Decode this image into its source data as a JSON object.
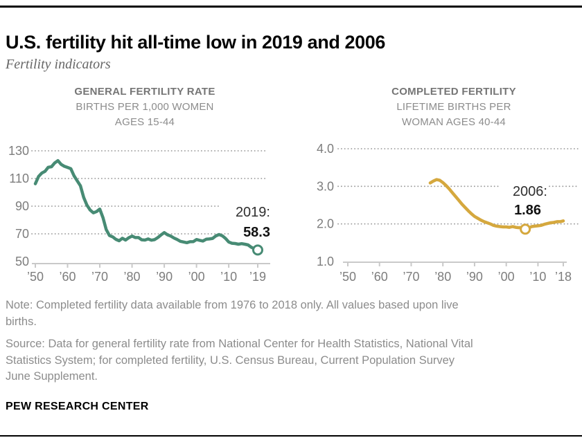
{
  "header": {
    "title": "U.S. fertility hit all-time low in 2019 and 2006",
    "subtitle": "Fertility indicators"
  },
  "chart_data": [
    {
      "type": "line",
      "title": "GENERAL FERTILITY RATE",
      "subtitle_lines": [
        "BIRTHS PER 1,000 WOMEN",
        "AGES 15-44"
      ],
      "xlabel": "",
      "ylabel": "",
      "xlim": [
        1950,
        2019
      ],
      "ylim": [
        50,
        130
      ],
      "yticks": [
        50,
        70,
        90,
        110,
        130
      ],
      "ytick_labels": [
        "50",
        "70",
        "90",
        "110",
        "130"
      ],
      "xticks": [
        1950,
        1960,
        1970,
        1980,
        1990,
        2000,
        2010,
        2019
      ],
      "xtick_labels": [
        "’50",
        "’60",
        "’70",
        "’80",
        "’90",
        "’00",
        "’10",
        "’19"
      ],
      "grid": "horizontal-dotted",
      "legend": "none",
      "line_color": "#478b74",
      "annotation": {
        "label": "2019:",
        "value": "58.3",
        "marker_year": 2019,
        "marker_value": 58.3
      },
      "series": [
        {
          "name": "General fertility rate",
          "x_start": 1950,
          "x_step": 1,
          "values": [
            106.2,
            111.5,
            113.9,
            115.2,
            118.1,
            118.5,
            121.2,
            122.9,
            120.2,
            118.8,
            118.0,
            117.1,
            112.0,
            108.3,
            104.7,
            96.3,
            90.8,
            87.2,
            85.2,
            86.1,
            87.9,
            81.6,
            73.1,
            68.8,
            67.8,
            66.0,
            65.0,
            66.8,
            65.5,
            67.2,
            68.4,
            67.3,
            67.3,
            65.7,
            65.5,
            66.3,
            65.4,
            65.8,
            67.3,
            69.2,
            70.9,
            69.3,
            68.4,
            67.0,
            65.9,
            64.6,
            64.1,
            63.6,
            64.3,
            64.4,
            65.9,
            65.3,
            64.8,
            66.1,
            66.3,
            66.7,
            68.5,
            69.5,
            68.6,
            66.7,
            64.1,
            63.2,
            63.0,
            62.5,
            62.9,
            62.5,
            62.0,
            60.3,
            59.1,
            58.3
          ]
        }
      ]
    },
    {
      "type": "line",
      "title": "COMPLETED FERTILITY",
      "subtitle_lines": [
        "LIFETIME BIRTHS PER",
        "WOMAN AGES 40-44"
      ],
      "xlabel": "",
      "ylabel": "",
      "xlim": [
        1950,
        2018
      ],
      "ylim": [
        1.0,
        4.0
      ],
      "yticks": [
        1.0,
        2.0,
        3.0,
        4.0
      ],
      "ytick_labels": [
        "1.0",
        "2.0",
        "3.0",
        "4.0"
      ],
      "xticks": [
        1950,
        1960,
        1970,
        1980,
        1990,
        2000,
        2010,
        2018
      ],
      "xtick_labels": [
        "’50",
        "’60",
        "’70",
        "’80",
        "’90",
        "’00",
        "’10",
        "’18"
      ],
      "grid": "horizontal-dotted",
      "legend": "none",
      "line_color": "#d5a83e",
      "annotation": {
        "label": "2006:",
        "value": "1.86",
        "marker_year": 2006,
        "marker_value": 1.86
      },
      "series": [
        {
          "name": "Completed fertility",
          "x_start": 1976,
          "x_step": 1,
          "values": [
            3.09,
            3.14,
            3.18,
            3.16,
            3.1,
            3.02,
            2.93,
            2.83,
            2.73,
            2.63,
            2.53,
            2.44,
            2.35,
            2.27,
            2.2,
            2.15,
            2.1,
            2.06,
            2.03,
            2.0,
            1.96,
            1.94,
            1.93,
            1.92,
            1.92,
            1.91,
            1.93,
            1.91,
            1.9,
            1.91,
            1.86,
            1.89,
            1.93,
            1.94,
            1.95,
            1.96,
            1.99,
            2.01,
            2.03,
            2.04,
            2.06,
            2.06,
            2.08
          ]
        }
      ]
    }
  ],
  "footer": {
    "note_lines": [
      "Note: Completed fertility data available from 1976 to 2018 only. All values based upon live",
      "births."
    ],
    "source_lines": [
      "Source: Data for general fertility rate from National Center for Health Statistics, National Vital",
      "Statistics System; for completed fertility, U.S. Census Bureau, Current Population Survey",
      "June Supplement."
    ],
    "brand": "PEW RESEARCH CENTER"
  }
}
